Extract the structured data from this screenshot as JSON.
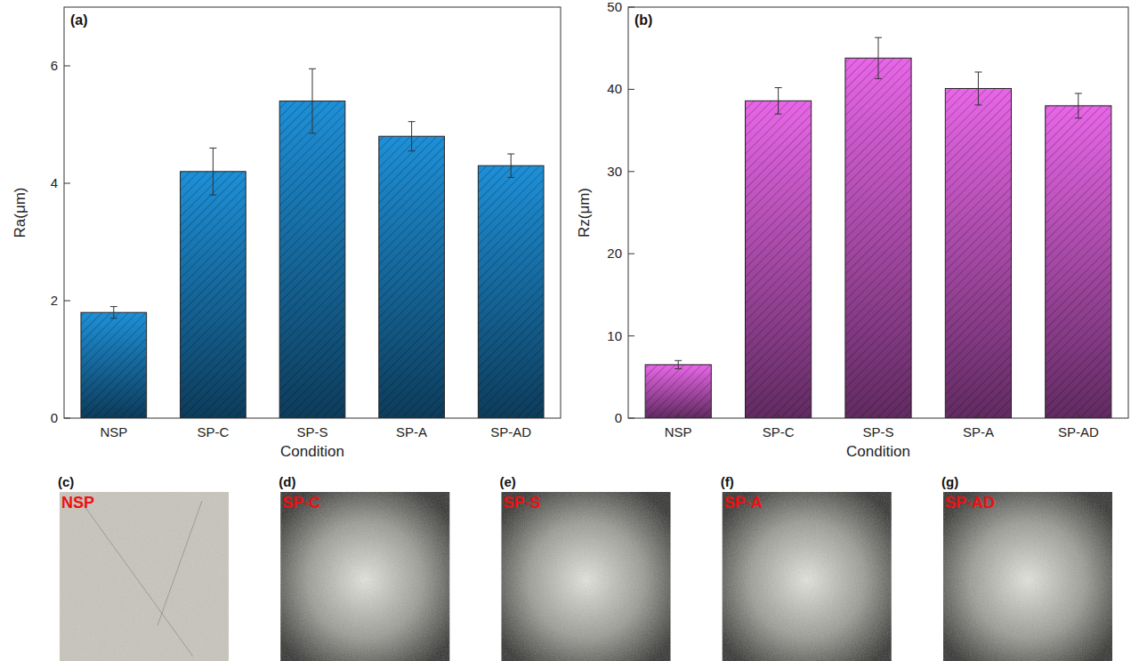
{
  "chart_data": [
    {
      "type": "bar",
      "panel": "(a)",
      "x_label": "Condition",
      "y_label": "Ra(μm)",
      "categories": [
        "NSP",
        "SP-C",
        "SP-S",
        "SP-A",
        "SP-AD"
      ],
      "values": [
        1.8,
        4.2,
        5.4,
        4.8,
        4.3
      ],
      "errors": [
        0.1,
        0.4,
        0.55,
        0.25,
        0.2
      ],
      "color": "#1e90d8",
      "ylim": [
        0,
        7
      ],
      "yticks": [
        0,
        2,
        4,
        6
      ],
      "grid": false
    },
    {
      "type": "bar",
      "panel": "(b)",
      "x_label": "Condition",
      "y_label": "Rz(μm)",
      "categories": [
        "NSP",
        "SP-C",
        "SP-S",
        "SP-A",
        "SP-AD"
      ],
      "values": [
        6.5,
        38.6,
        43.8,
        40.1,
        38.0
      ],
      "errors": [
        0.5,
        1.6,
        2.5,
        2.0,
        1.5
      ],
      "color": "#e866e8",
      "ylim": [
        0,
        50
      ],
      "yticks": [
        0,
        10,
        20,
        30,
        40,
        50
      ],
      "grid": false
    }
  ],
  "images": [
    {
      "panel": "(c)",
      "label": "NSP"
    },
    {
      "panel": "(d)",
      "label": "SP-C"
    },
    {
      "panel": "(e)",
      "label": "SP-S"
    },
    {
      "panel": "(f)",
      "label": "SP-A"
    },
    {
      "panel": "(g)",
      "label": "SP-AD"
    }
  ]
}
